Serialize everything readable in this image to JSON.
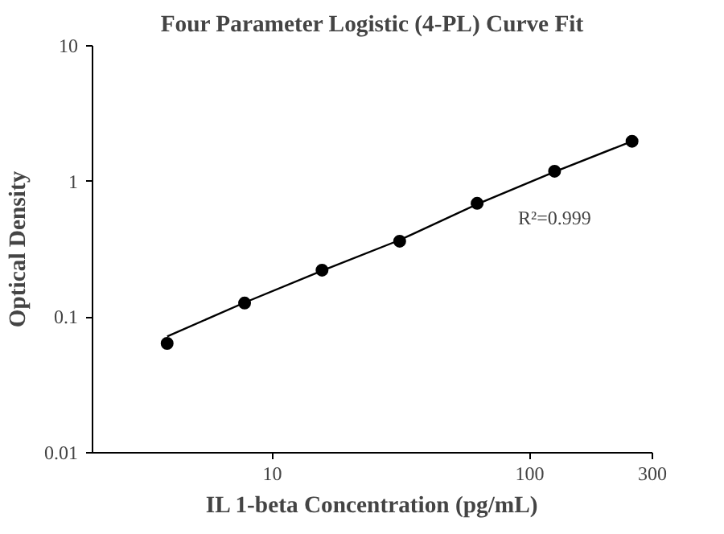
{
  "chart_data": {
    "type": "scatter",
    "title": "Four Parameter Logistic (4-PL) Curve Fit",
    "xlabel": "IL 1-beta Concentration (pg/mL)",
    "ylabel": "Optical Density",
    "log": "xy",
    "xlim": [
      2,
      300
    ],
    "ylim": [
      0.01,
      10
    ],
    "xticks": [
      10,
      100,
      300
    ],
    "yticks": [
      0.01,
      0.1,
      1,
      10
    ],
    "grid": false,
    "marker": "circle",
    "annotations": [
      "R²=0.999"
    ],
    "series": [
      {
        "color": "#000000",
        "x": [
          3.9,
          7.8,
          15.6,
          31.25,
          62.5,
          125,
          250
        ],
        "values": [
          0.064,
          0.127,
          0.222,
          0.363,
          0.69,
          1.19,
          1.98
        ]
      },
      {
        "type": "line",
        "color": "#000000",
        "marker": "none",
        "line_style": "solid",
        "x": [
          3.9,
          7.8,
          15.6,
          31.25,
          62.5,
          125,
          250
        ],
        "values": [
          0.072,
          0.128,
          0.22,
          0.37,
          0.68,
          1.18,
          1.98
        ]
      }
    ]
  }
}
